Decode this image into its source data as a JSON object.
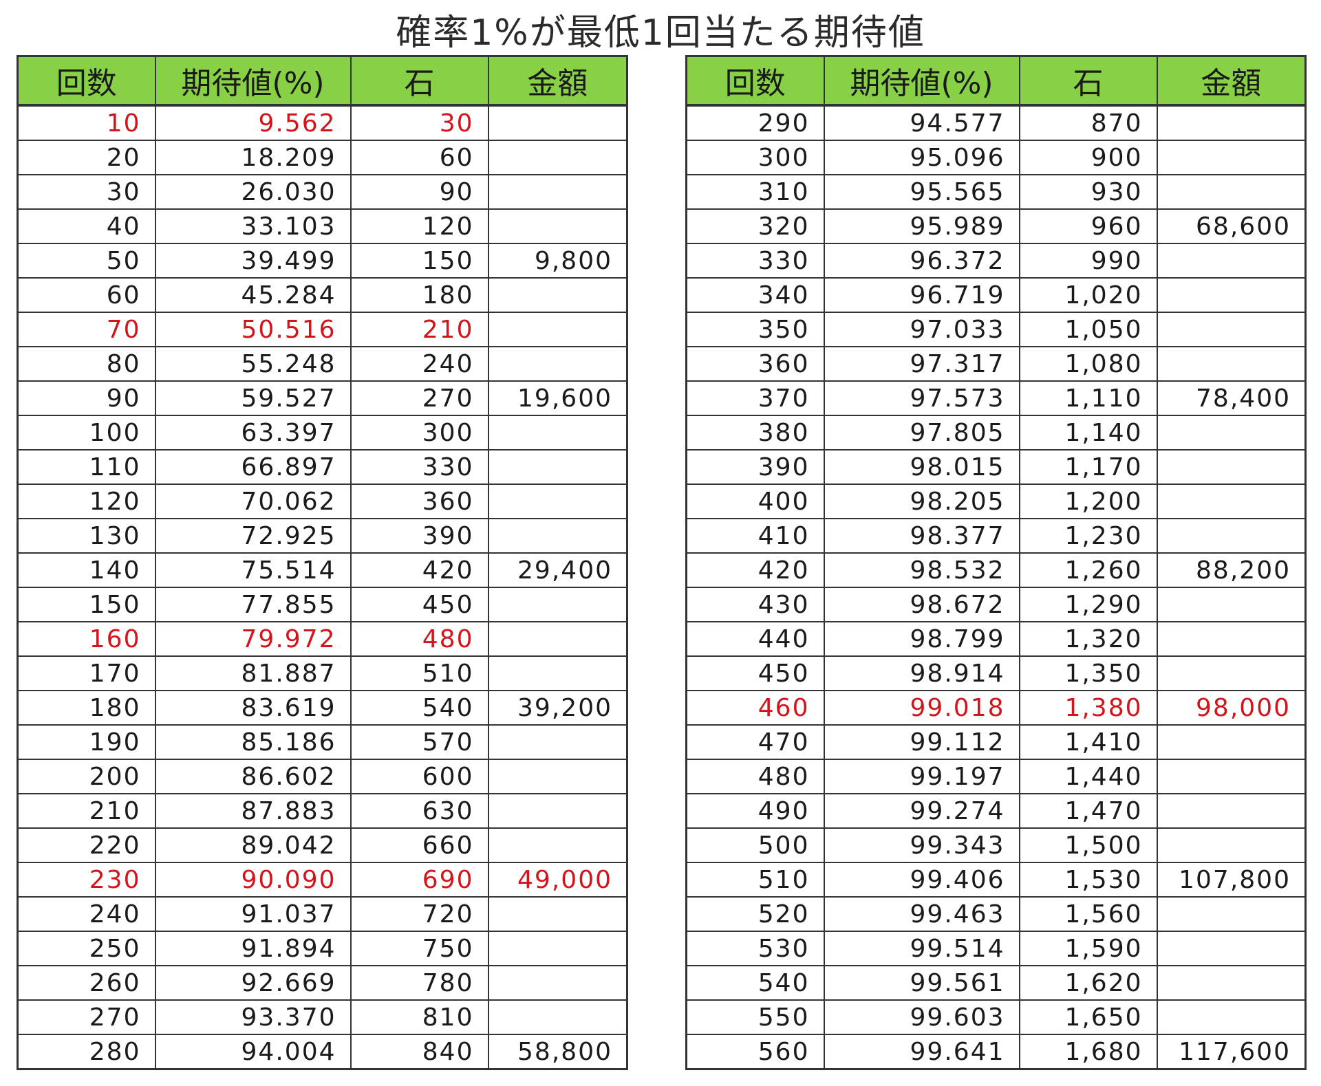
{
  "title": "確率1%が最低1回当たる期待値",
  "columns": [
    "回数",
    "期待値(%)",
    "石",
    "金額"
  ],
  "highlight_color": "#d4141b",
  "header_color": "#88d046",
  "left_rows": [
    {
      "n": "10",
      "ev": "9.562",
      "stone": "30",
      "amount": "",
      "hl": true
    },
    {
      "n": "20",
      "ev": "18.209",
      "stone": "60",
      "amount": ""
    },
    {
      "n": "30",
      "ev": "26.030",
      "stone": "90",
      "amount": ""
    },
    {
      "n": "40",
      "ev": "33.103",
      "stone": "120",
      "amount": ""
    },
    {
      "n": "50",
      "ev": "39.499",
      "stone": "150",
      "amount": "9,800"
    },
    {
      "n": "60",
      "ev": "45.284",
      "stone": "180",
      "amount": ""
    },
    {
      "n": "70",
      "ev": "50.516",
      "stone": "210",
      "amount": "",
      "hl": true
    },
    {
      "n": "80",
      "ev": "55.248",
      "stone": "240",
      "amount": ""
    },
    {
      "n": "90",
      "ev": "59.527",
      "stone": "270",
      "amount": "19,600"
    },
    {
      "n": "100",
      "ev": "63.397",
      "stone": "300",
      "amount": ""
    },
    {
      "n": "110",
      "ev": "66.897",
      "stone": "330",
      "amount": ""
    },
    {
      "n": "120",
      "ev": "70.062",
      "stone": "360",
      "amount": ""
    },
    {
      "n": "130",
      "ev": "72.925",
      "stone": "390",
      "amount": ""
    },
    {
      "n": "140",
      "ev": "75.514",
      "stone": "420",
      "amount": "29,400"
    },
    {
      "n": "150",
      "ev": "77.855",
      "stone": "450",
      "amount": ""
    },
    {
      "n": "160",
      "ev": "79.972",
      "stone": "480",
      "amount": "",
      "hl": true
    },
    {
      "n": "170",
      "ev": "81.887",
      "stone": "510",
      "amount": ""
    },
    {
      "n": "180",
      "ev": "83.619",
      "stone": "540",
      "amount": "39,200"
    },
    {
      "n": "190",
      "ev": "85.186",
      "stone": "570",
      "amount": ""
    },
    {
      "n": "200",
      "ev": "86.602",
      "stone": "600",
      "amount": ""
    },
    {
      "n": "210",
      "ev": "87.883",
      "stone": "630",
      "amount": ""
    },
    {
      "n": "220",
      "ev": "89.042",
      "stone": "660",
      "amount": ""
    },
    {
      "n": "230",
      "ev": "90.090",
      "stone": "690",
      "amount": "49,000",
      "hl": true
    },
    {
      "n": "240",
      "ev": "91.037",
      "stone": "720",
      "amount": ""
    },
    {
      "n": "250",
      "ev": "91.894",
      "stone": "750",
      "amount": ""
    },
    {
      "n": "260",
      "ev": "92.669",
      "stone": "780",
      "amount": ""
    },
    {
      "n": "270",
      "ev": "93.370",
      "stone": "810",
      "amount": ""
    },
    {
      "n": "280",
      "ev": "94.004",
      "stone": "840",
      "amount": "58,800"
    }
  ],
  "right_rows": [
    {
      "n": "290",
      "ev": "94.577",
      "stone": "870",
      "amount": ""
    },
    {
      "n": "300",
      "ev": "95.096",
      "stone": "900",
      "amount": ""
    },
    {
      "n": "310",
      "ev": "95.565",
      "stone": "930",
      "amount": ""
    },
    {
      "n": "320",
      "ev": "95.989",
      "stone": "960",
      "amount": "68,600"
    },
    {
      "n": "330",
      "ev": "96.372",
      "stone": "990",
      "amount": ""
    },
    {
      "n": "340",
      "ev": "96.719",
      "stone": "1,020",
      "amount": ""
    },
    {
      "n": "350",
      "ev": "97.033",
      "stone": "1,050",
      "amount": ""
    },
    {
      "n": "360",
      "ev": "97.317",
      "stone": "1,080",
      "amount": ""
    },
    {
      "n": "370",
      "ev": "97.573",
      "stone": "1,110",
      "amount": "78,400"
    },
    {
      "n": "380",
      "ev": "97.805",
      "stone": "1,140",
      "amount": ""
    },
    {
      "n": "390",
      "ev": "98.015",
      "stone": "1,170",
      "amount": ""
    },
    {
      "n": "400",
      "ev": "98.205",
      "stone": "1,200",
      "amount": ""
    },
    {
      "n": "410",
      "ev": "98.377",
      "stone": "1,230",
      "amount": ""
    },
    {
      "n": "420",
      "ev": "98.532",
      "stone": "1,260",
      "amount": "88,200"
    },
    {
      "n": "430",
      "ev": "98.672",
      "stone": "1,290",
      "amount": ""
    },
    {
      "n": "440",
      "ev": "98.799",
      "stone": "1,320",
      "amount": ""
    },
    {
      "n": "450",
      "ev": "98.914",
      "stone": "1,350",
      "amount": ""
    },
    {
      "n": "460",
      "ev": "99.018",
      "stone": "1,380",
      "amount": "98,000",
      "hl": true
    },
    {
      "n": "470",
      "ev": "99.112",
      "stone": "1,410",
      "amount": ""
    },
    {
      "n": "480",
      "ev": "99.197",
      "stone": "1,440",
      "amount": ""
    },
    {
      "n": "490",
      "ev": "99.274",
      "stone": "1,470",
      "amount": ""
    },
    {
      "n": "500",
      "ev": "99.343",
      "stone": "1,500",
      "amount": ""
    },
    {
      "n": "510",
      "ev": "99.406",
      "stone": "1,530",
      "amount": "107,800"
    },
    {
      "n": "520",
      "ev": "99.463",
      "stone": "1,560",
      "amount": ""
    },
    {
      "n": "530",
      "ev": "99.514",
      "stone": "1,590",
      "amount": ""
    },
    {
      "n": "540",
      "ev": "99.561",
      "stone": "1,620",
      "amount": ""
    },
    {
      "n": "550",
      "ev": "99.603",
      "stone": "1,650",
      "amount": ""
    },
    {
      "n": "560",
      "ev": "99.641",
      "stone": "1,680",
      "amount": "117,600"
    }
  ]
}
